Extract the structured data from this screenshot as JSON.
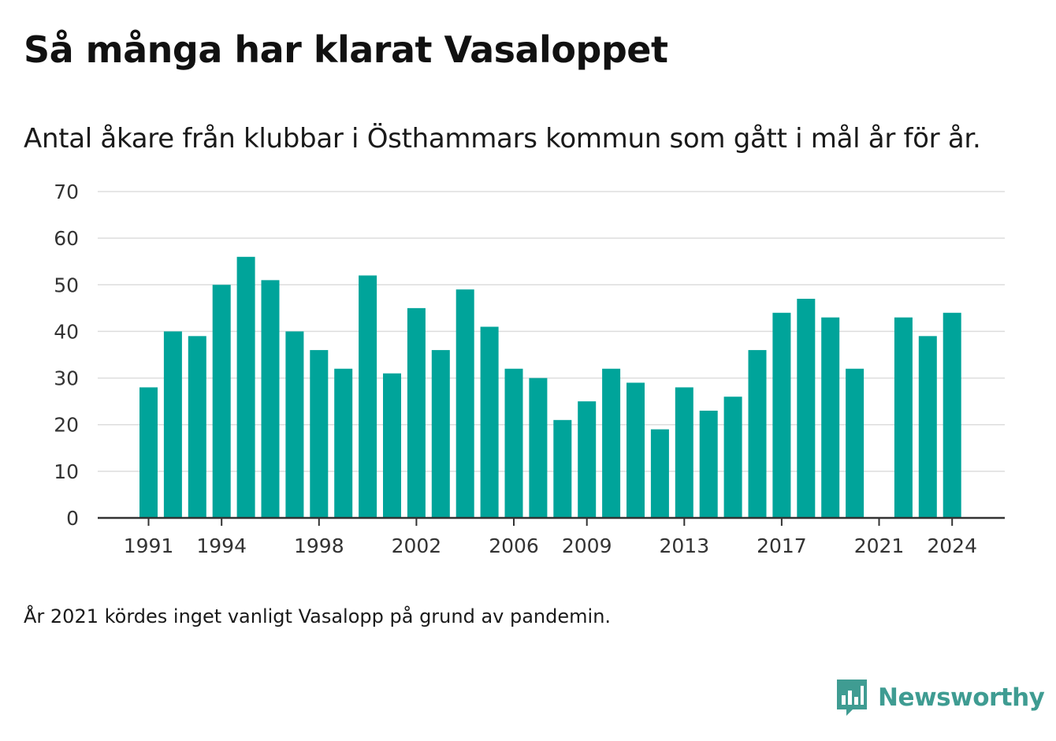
{
  "header": {
    "title": "Så många har klarat Vasaloppet",
    "subtitle": "Antal åkare från klubbar i Östhammars kommun som gått i mål år för år."
  },
  "footer": {
    "note": "År 2021 kördes inget vanligt Vasalopp på grund av pandemin.",
    "brand": "Newsworthy"
  },
  "colors": {
    "bar": "#00a49a",
    "grid": "#dddddd",
    "axis": "#333333",
    "brand": "#3f9c92"
  },
  "icons": {
    "brand_logo": "newsworthy-logo-icon"
  },
  "chart_data": {
    "type": "bar",
    "title": "Så många har klarat Vasaloppet",
    "subtitle": "Antal åkare från klubbar i Östhammars kommun som gått i mål år för år.",
    "xlabel": "",
    "ylabel": "",
    "ylim": [
      0,
      70
    ],
    "yticks": [
      0,
      10,
      20,
      30,
      40,
      50,
      60,
      70
    ],
    "grid": true,
    "legend": "none",
    "xtick_labels": [
      "1991",
      "1994",
      "1998",
      "2002",
      "2006",
      "2009",
      "2013",
      "2017",
      "2021",
      "2024"
    ],
    "categories": [
      "1991",
      "1992",
      "1993",
      "1994",
      "1995",
      "1996",
      "1997",
      "1998",
      "1999",
      "2000",
      "2001",
      "2002",
      "2003",
      "2004",
      "2005",
      "2006",
      "2007",
      "2008",
      "2009",
      "2010",
      "2011",
      "2012",
      "2013",
      "2014",
      "2015",
      "2016",
      "2017",
      "2018",
      "2019",
      "2020",
      "2021",
      "2022",
      "2023",
      "2024"
    ],
    "values": [
      28,
      40,
      39,
      50,
      56,
      51,
      40,
      36,
      32,
      52,
      31,
      45,
      36,
      49,
      41,
      32,
      30,
      21,
      25,
      32,
      29,
      19,
      28,
      23,
      26,
      36,
      44,
      47,
      43,
      32,
      null,
      43,
      39,
      44
    ]
  }
}
